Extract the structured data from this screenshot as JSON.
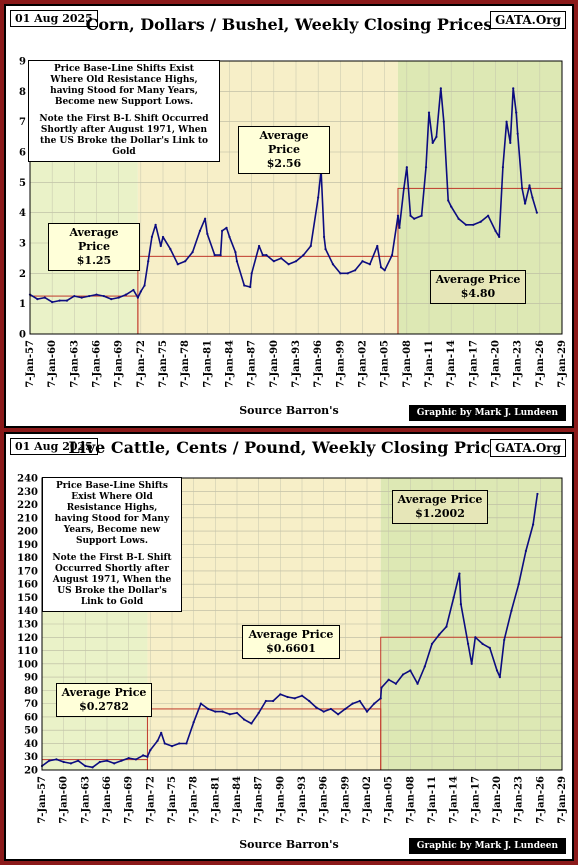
{
  "colors": {
    "frame": "#8b1a1a",
    "line": "#0c0c80",
    "era1": "#eaf2c8",
    "era2": "#f7efc8",
    "era3": "#dde8b4",
    "avg_box": "#c0392b"
  },
  "corn": {
    "date": "01 Aug 2025",
    "title": "Corn, Dollars / Bushel, Weekly Closing Prices",
    "site": "GATA.Org",
    "source": "Source Barron's",
    "credit": "Graphic by Mark J. Lundeen",
    "note": [
      "Price Base-Line Shifts Exist",
      "Where Old Resistance Highs,",
      "having Stood for Many Years,",
      "Become new Support Lows.",
      "",
      "Note the First B-L Shift Occurred",
      "Shortly after August 1971, When",
      "the US Broke the Dollar's Link to",
      "Gold"
    ],
    "avg1": [
      "Average Price",
      "$1.25"
    ],
    "avg2": [
      "Average Price",
      "$2.56"
    ],
    "avg3": [
      "Average Price",
      "$4.80"
    ]
  },
  "cattle": {
    "date": "01 Aug 2025",
    "title": "Live Cattle, Cents / Pound, Weekly Closing Prices",
    "site": "GATA.Org",
    "source": "Source Barron's",
    "credit": "Graphic by Mark J. Lundeen",
    "note": [
      "Price Base-Line Shifts",
      "Exist Where Old",
      "Resistance Highs,",
      "having Stood for Many",
      "Years, Become new",
      "Support Lows.",
      "",
      "Note the First B-L Shift",
      "Occurred Shortly after",
      "August 1971, When the",
      "US Broke the Dollar's",
      "Link to Gold"
    ],
    "avg1": [
      "Average Price",
      "$0.2782"
    ],
    "avg2": [
      "Average Price",
      "$0.6601"
    ],
    "avg3": [
      "Average Price",
      "$1.2002"
    ]
  },
  "chart_data": [
    {
      "type": "line",
      "title": "Corn, Dollars / Bushel, Weekly Closing Prices",
      "xlabel": "Source Barron's",
      "xlim": [
        1957,
        2029
      ],
      "ylim": [
        0,
        9
      ],
      "y_ticks": [
        "0",
        "1",
        "2",
        "3",
        "4",
        "5",
        "6",
        "7",
        "8",
        "9"
      ],
      "x_ticks": [
        "7-Jan-57",
        "7-Jan-60",
        "7-Jan-63",
        "7-Jan-66",
        "7-Jan-69",
        "7-Jan-72",
        "7-Jan-75",
        "7-Jan-78",
        "7-Jan-81",
        "7-Jan-84",
        "7-Jan-87",
        "7-Jan-90",
        "7-Jan-93",
        "7-Jan-96",
        "7-Jan-99",
        "7-Jan-02",
        "7-Jan-05",
        "7-Jan-08",
        "7-Jan-11",
        "7-Jan-14",
        "7-Jan-17",
        "7-Jan-20",
        "7-Jan-23",
        "7-Jan-26",
        "7-Jan-29"
      ],
      "eras": [
        {
          "from": 1957,
          "to": 1971.6,
          "avg": 1.25
        },
        {
          "from": 1971.6,
          "to": 2006.8,
          "avg": 2.56
        },
        {
          "from": 2006.8,
          "to": 2029,
          "avg": 4.8
        }
      ],
      "series": [
        {
          "x": [
            1957,
            1958,
            1959,
            1960,
            1961,
            1962,
            1963,
            1964,
            1965,
            1966,
            1967,
            1968,
            1969,
            1970,
            1971,
            1971.6,
            1972,
            1972.5,
            1973,
            1973.5,
            1974,
            1974.7,
            1975,
            1976,
            1977,
            1978,
            1979,
            1980,
            1980.7,
            1981,
            1982,
            1982.8,
            1983,
            1983.6,
            1984,
            1984.8,
            1985,
            1986,
            1986.8,
            1987,
            1988,
            1988.5,
            1989,
            1990,
            1991,
            1992,
            1993,
            1994,
            1995,
            1996,
            1996.4,
            1996.8,
            1997,
            1998,
            1999,
            2000,
            2001,
            2002,
            2003,
            2004,
            2004.5,
            2005,
            2006,
            2006.8,
            2007,
            2007.6,
            2008,
            2008.5,
            2009,
            2010,
            2010.6,
            2011,
            2011.5,
            2012,
            2012.6,
            2013,
            2013.6,
            2014,
            2015,
            2016,
            2017,
            2018,
            2019,
            2020,
            2020.5,
            2021,
            2021.5,
            2022,
            2022.4,
            2022.8,
            2023,
            2023.6,
            2024,
            2024.6,
            2025,
            2025.6
          ],
          "y": [
            1.3,
            1.15,
            1.2,
            1.05,
            1.1,
            1.1,
            1.25,
            1.2,
            1.25,
            1.3,
            1.25,
            1.15,
            1.2,
            1.3,
            1.45,
            1.2,
            1.4,
            1.6,
            2.4,
            3.2,
            3.6,
            2.9,
            3.2,
            2.8,
            2.3,
            2.4,
            2.7,
            3.4,
            3.8,
            3.3,
            2.6,
            2.6,
            3.4,
            3.5,
            3.2,
            2.7,
            2.4,
            1.6,
            1.55,
            2.0,
            2.9,
            2.6,
            2.6,
            2.4,
            2.5,
            2.3,
            2.4,
            2.6,
            2.9,
            4.5,
            5.4,
            3.2,
            2.8,
            2.3,
            2.0,
            2.0,
            2.1,
            2.4,
            2.3,
            2.9,
            2.2,
            2.1,
            2.6,
            3.9,
            3.5,
            4.8,
            5.5,
            3.9,
            3.8,
            3.9,
            5.5,
            7.3,
            6.3,
            6.5,
            8.1,
            7.0,
            4.4,
            4.2,
            3.8,
            3.6,
            3.6,
            3.7,
            3.9,
            3.4,
            3.2,
            5.5,
            7.0,
            6.3,
            8.1,
            7.3,
            6.6,
            4.8,
            4.3,
            4.9,
            4.5,
            4.0
          ]
        }
      ]
    },
    {
      "type": "line",
      "title": "Live Cattle, Cents / Pound, Weekly Closing Prices",
      "xlabel": "Source Barron's",
      "xlim": [
        1957,
        2029
      ],
      "ylim": [
        20,
        240
      ],
      "y_ticks": [
        "20",
        "30",
        "40",
        "50",
        "60",
        "70",
        "80",
        "90",
        "100",
        "110",
        "120",
        "130",
        "140",
        "150",
        "160",
        "170",
        "180",
        "190",
        "200",
        "210",
        "220",
        "230",
        "240"
      ],
      "x_ticks": [
        "7-Jan-57",
        "7-Jan-60",
        "7-Jan-63",
        "7-Jan-66",
        "7-Jan-69",
        "7-Jan-72",
        "7-Jan-75",
        "7-Jan-78",
        "7-Jan-81",
        "7-Jan-84",
        "7-Jan-87",
        "7-Jan-90",
        "7-Jan-93",
        "7-Jan-96",
        "7-Jan-99",
        "7-Jan-02",
        "7-Jan-05",
        "7-Jan-08",
        "7-Jan-11",
        "7-Jan-14",
        "7-Jan-17",
        "7-Jan-20",
        "7-Jan-23",
        "7-Jan-26",
        "7-Jan-29"
      ],
      "eras": [
        {
          "from": 1957,
          "to": 1971.6,
          "avg": 27.82
        },
        {
          "from": 1971.6,
          "to": 2003.9,
          "avg": 66.01
        },
        {
          "from": 2003.9,
          "to": 2029,
          "avg": 120.02
        }
      ],
      "series": [
        {
          "x": [
            1957,
            1958,
            1959,
            1960,
            1961,
            1962,
            1963,
            1964,
            1965,
            1966,
            1967,
            1968,
            1969,
            1970,
            1971,
            1971.6,
            1972,
            1973,
            1973.5,
            1974,
            1975,
            1976,
            1977,
            1978,
            1979,
            1980,
            1981,
            1982,
            1983,
            1984,
            1985,
            1986,
            1987,
            1988,
            1989,
            1990,
            1991,
            1992,
            1993,
            1994,
            1995,
            1996,
            1997,
            1998,
            1999,
            2000,
            2001,
            2002,
            2003,
            2003.9,
            2004,
            2005,
            2006,
            2007,
            2008,
            2009,
            2010,
            2011,
            2012,
            2013,
            2014,
            2014.8,
            2015,
            2016,
            2016.5,
            2017,
            2018,
            2019,
            2020,
            2020.4,
            2021,
            2022,
            2023,
            2024,
            2025,
            2025.6
          ],
          "y": [
            23,
            27,
            28,
            26,
            25,
            27,
            23,
            22,
            26,
            27,
            25,
            27,
            29,
            28,
            31,
            30,
            35,
            42,
            48,
            40,
            38,
            40,
            40,
            56,
            70,
            66,
            64,
            64,
            62,
            63,
            58,
            55,
            63,
            72,
            72,
            77,
            75,
            74,
            76,
            72,
            67,
            64,
            66,
            62,
            66,
            70,
            72,
            64,
            70,
            74,
            82,
            88,
            85,
            92,
            95,
            85,
            98,
            115,
            122,
            128,
            150,
            168,
            145,
            115,
            100,
            120,
            115,
            112,
            95,
            90,
            118,
            140,
            160,
            185,
            205,
            228
          ]
        }
      ]
    }
  ]
}
